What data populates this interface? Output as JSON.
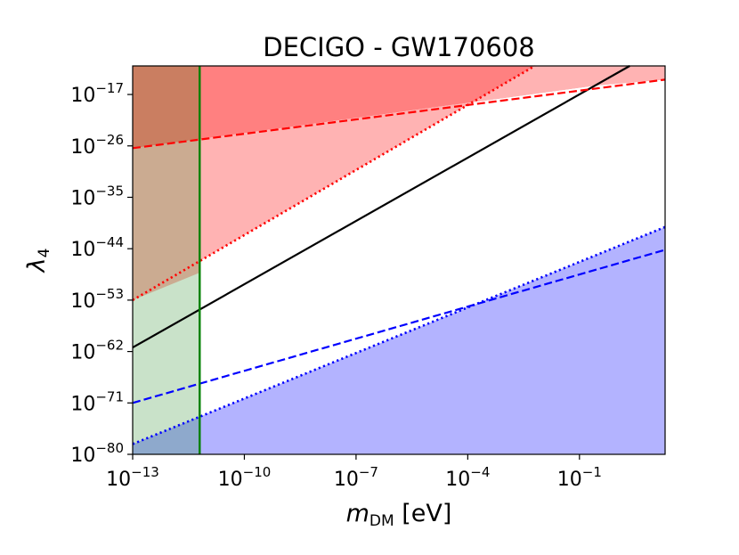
{
  "chart_data": {
    "type": "line",
    "title": "DECIGO - GW170608",
    "xlabel": {
      "base": "m",
      "sub": "DM",
      "unit": " [eV]"
    },
    "ylabel": {
      "base": "λ",
      "sub": "4"
    },
    "xscale": "log10",
    "yscale": "log10",
    "xlim": [
      -13,
      1.3
    ],
    "ylim": [
      -80,
      -12
    ],
    "grid": false,
    "xticks": [
      {
        "exp": -13,
        "label_base": "10",
        "label_exp": "−13"
      },
      {
        "exp": -10,
        "label_base": "10",
        "label_exp": "−10"
      },
      {
        "exp": -7,
        "label_base": "10",
        "label_exp": "−7"
      },
      {
        "exp": -4,
        "label_base": "10",
        "label_exp": "−4"
      },
      {
        "exp": -1,
        "label_base": "10",
        "label_exp": "−1"
      }
    ],
    "yticks": [
      {
        "exp": -80,
        "label_base": "10",
        "label_exp": "−80"
      },
      {
        "exp": -71,
        "label_base": "10",
        "label_exp": "−71"
      },
      {
        "exp": -62,
        "label_base": "10",
        "label_exp": "−62"
      },
      {
        "exp": -53,
        "label_base": "10",
        "label_exp": "−53"
      },
      {
        "exp": -44,
        "label_base": "10",
        "label_exp": "−44"
      },
      {
        "exp": -35,
        "label_base": "10",
        "label_exp": "−35"
      },
      {
        "exp": -26,
        "label_base": "10",
        "label_exp": "−26"
      },
      {
        "exp": -17,
        "label_base": "10",
        "label_exp": "−17"
      }
    ],
    "regions": [
      {
        "id": "red-dark",
        "color": "#ff8080",
        "points_log10": [
          [
            -13,
            -26.4
          ],
          [
            -0.52,
            -15.4
          ],
          [
            1.3,
            -14.4
          ],
          [
            1.3,
            -12
          ],
          [
            -13,
            -12
          ]
        ]
      },
      {
        "id": "red-light",
        "color": "#ffb3b3",
        "points_log10": [
          [
            -13,
            -53
          ],
          [
            -2.2,
            -12
          ],
          [
            -0.48,
            -12
          ],
          [
            1.3,
            -12
          ],
          [
            1.3,
            -14.4
          ],
          [
            -0.52,
            -15.4
          ],
          [
            -13,
            -26.4
          ]
        ]
      },
      {
        "id": "blue",
        "color": "#b3b3ff",
        "points_log10": [
          [
            -13,
            -78.2
          ],
          [
            1.3,
            -40.2
          ],
          [
            1.3,
            -80
          ],
          [
            -13,
            -80
          ]
        ]
      },
      {
        "id": "green-band",
        "color": "#c9e2c9",
        "points_log10": [
          [
            -13,
            -80
          ],
          [
            -11.2,
            -80
          ],
          [
            -11.2,
            -12
          ],
          [
            -13,
            -12
          ]
        ]
      },
      {
        "id": "green-over-red",
        "color": "#ca7e61",
        "points_log10": [
          [
            -13,
            -26.4
          ],
          [
            -11.2,
            -24.8
          ],
          [
            -11.2,
            -12
          ],
          [
            -13,
            -12
          ]
        ]
      },
      {
        "id": "green-over-pink",
        "color": "#cbab91",
        "points_log10": [
          [
            -13,
            -53
          ],
          [
            -11.2,
            -48.2
          ],
          [
            -11.2,
            -24.8
          ],
          [
            -13,
            -26.4
          ]
        ]
      },
      {
        "id": "green-over-blue",
        "color": "#8ea9cc",
        "points_log10": [
          [
            -13,
            -78.2
          ],
          [
            -11.2,
            -73.4
          ],
          [
            -11.2,
            -80
          ],
          [
            -13,
            -80
          ]
        ]
      }
    ],
    "series": [
      {
        "id": "black-solid",
        "color": "#000000",
        "dash": "solid",
        "points_log10": [
          [
            -13,
            -61.3
          ],
          [
            0.35,
            -12
          ]
        ]
      },
      {
        "id": "red-dashed",
        "color": "#ff0000",
        "dash": "dashed",
        "points_log10": [
          [
            -13,
            -26.4
          ],
          [
            1.3,
            -14.4
          ]
        ]
      },
      {
        "id": "red-dotted",
        "color": "#ff0000",
        "dash": "dotted",
        "points_log10": [
          [
            -13,
            -53
          ],
          [
            -2.2,
            -12
          ]
        ]
      },
      {
        "id": "blue-dashed",
        "color": "#0000ff",
        "dash": "dashed",
        "points_log10": [
          [
            -13,
            -71
          ],
          [
            1.3,
            -44.2
          ]
        ]
      },
      {
        "id": "blue-dotted",
        "color": "#0000ff",
        "dash": "dotted",
        "points_log10": [
          [
            -13,
            -78.2
          ],
          [
            1.3,
            -40.2
          ]
        ]
      },
      {
        "id": "green-vertical",
        "color": "#008000",
        "dash": "solid",
        "points_log10": [
          [
            -11.2,
            -80
          ],
          [
            -11.2,
            -12
          ]
        ]
      }
    ]
  }
}
